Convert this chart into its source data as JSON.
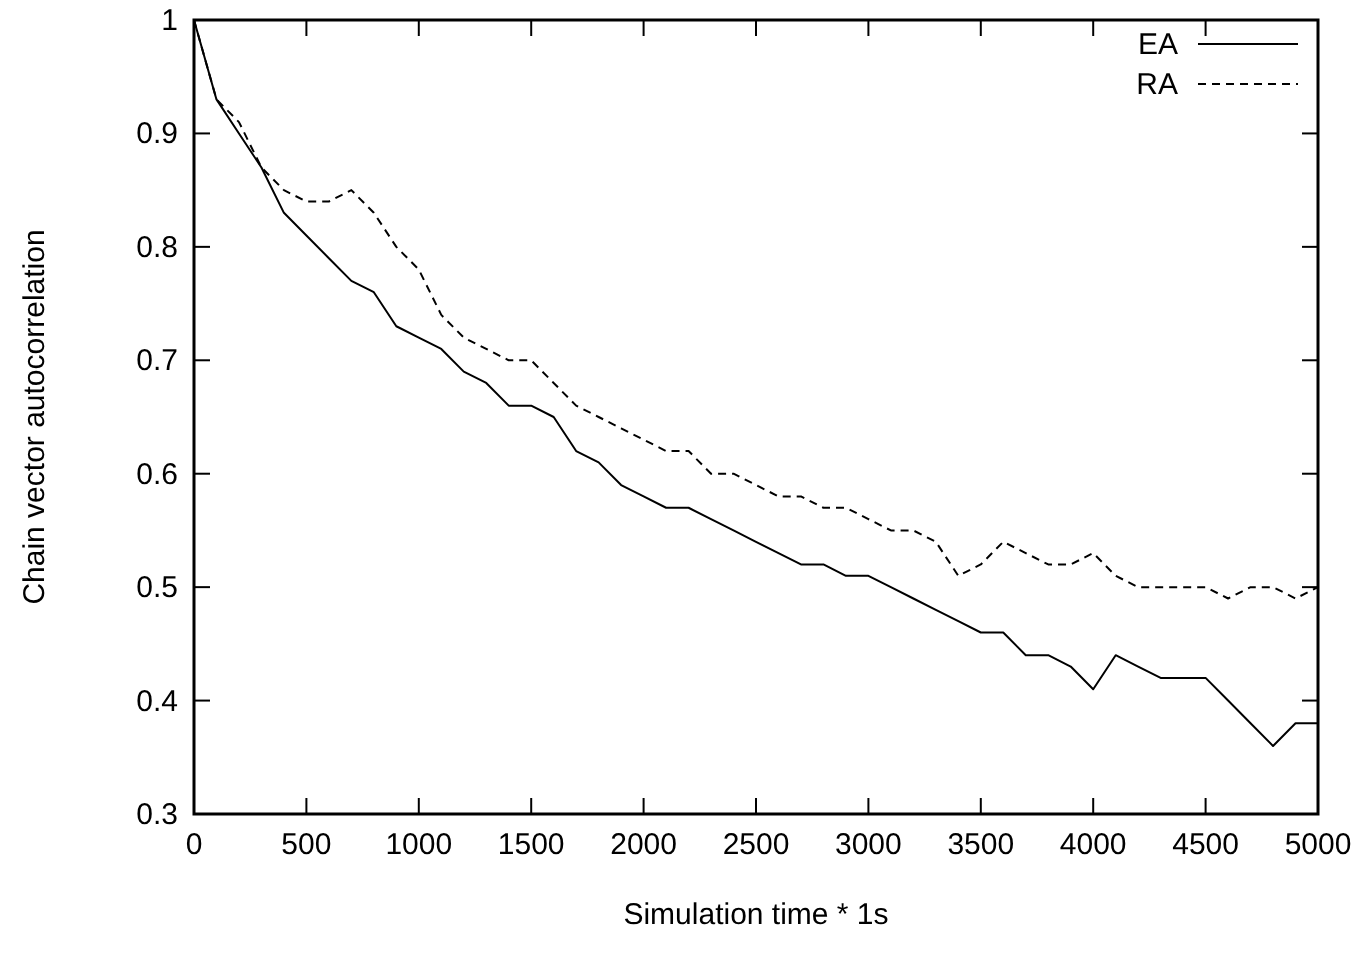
{
  "chart_data": {
    "type": "line",
    "xlabel": "Simulation time * 1s",
    "ylabel": "Chain vector autocorrelation",
    "x": [
      0,
      100,
      200,
      300,
      400,
      500,
      600,
      700,
      800,
      900,
      1000,
      1100,
      1200,
      1300,
      1400,
      1500,
      1600,
      1700,
      1800,
      1900,
      2000,
      2100,
      2200,
      2300,
      2400,
      2500,
      2600,
      2700,
      2800,
      2900,
      3000,
      3100,
      3200,
      3300,
      3400,
      3500,
      3600,
      3700,
      3800,
      3900,
      4000,
      4100,
      4200,
      4300,
      4400,
      4500,
      4600,
      4700,
      4800,
      4900,
      5000
    ],
    "series": [
      {
        "name": "EA",
        "color": "#000000",
        "line_style": "solid",
        "values": [
          1.0,
          0.93,
          0.9,
          0.87,
          0.83,
          0.81,
          0.79,
          0.77,
          0.76,
          0.73,
          0.72,
          0.71,
          0.69,
          0.68,
          0.66,
          0.66,
          0.65,
          0.62,
          0.61,
          0.59,
          0.58,
          0.57,
          0.57,
          0.56,
          0.55,
          0.54,
          0.53,
          0.52,
          0.52,
          0.51,
          0.51,
          0.5,
          0.49,
          0.48,
          0.47,
          0.46,
          0.46,
          0.44,
          0.44,
          0.43,
          0.41,
          0.44,
          0.43,
          0.42,
          0.42,
          0.42,
          0.4,
          0.38,
          0.36,
          0.38,
          0.38
        ]
      },
      {
        "name": "RA",
        "color": "#000000",
        "line_style": "dashed",
        "values": [
          1.0,
          0.93,
          0.91,
          0.87,
          0.85,
          0.84,
          0.84,
          0.85,
          0.83,
          0.8,
          0.78,
          0.74,
          0.72,
          0.71,
          0.7,
          0.7,
          0.68,
          0.66,
          0.65,
          0.64,
          0.63,
          0.62,
          0.62,
          0.6,
          0.6,
          0.59,
          0.58,
          0.58,
          0.57,
          0.57,
          0.56,
          0.55,
          0.55,
          0.54,
          0.51,
          0.52,
          0.54,
          0.53,
          0.52,
          0.52,
          0.53,
          0.51,
          0.5,
          0.5,
          0.5,
          0.5,
          0.49,
          0.5,
          0.5,
          0.49,
          0.5
        ]
      }
    ],
    "xlim": [
      0,
      5000
    ],
    "xticks": [
      0,
      500,
      1000,
      1500,
      2000,
      2500,
      3000,
      3500,
      4000,
      4500,
      5000
    ],
    "ylim": [
      0.3,
      1
    ],
    "yticks": [
      0.3,
      0.4,
      0.5,
      0.6,
      0.7,
      0.8,
      0.9,
      1
    ],
    "grid": false,
    "legend": "top right",
    "marker": "none"
  }
}
